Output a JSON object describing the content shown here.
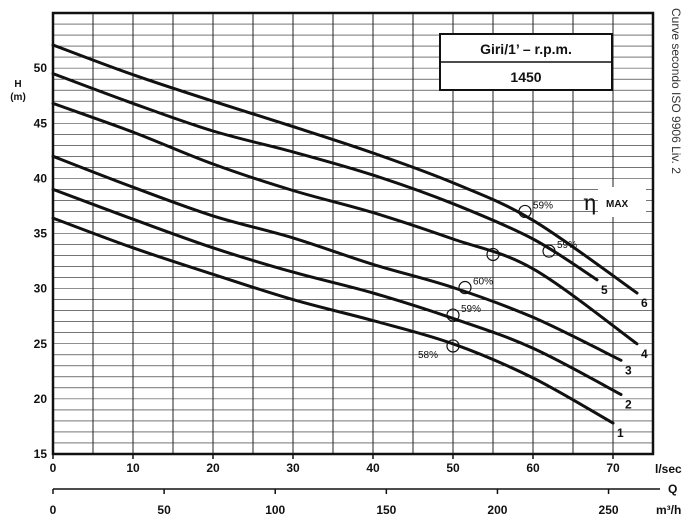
{
  "chart_data": {
    "type": "line",
    "title_box": {
      "line1": "Giri/1’ – r.p.m.",
      "line2": "1450"
    },
    "yaxis": {
      "label_letter": "H",
      "label_unit": "(m)",
      "ylim": [
        15,
        55
      ],
      "ticks": [
        15,
        20,
        25,
        30,
        35,
        40,
        45,
        50
      ]
    },
    "xaxis_primary": {
      "unit": "l/sec",
      "xlim": [
        0,
        75
      ],
      "ticks": [
        0,
        10,
        20,
        30,
        40,
        50,
        60,
        70
      ]
    },
    "xaxis_secondary": {
      "unit": "m³/h",
      "ticks": [
        0,
        50,
        100,
        150,
        200,
        250
      ]
    },
    "q_label": "Q",
    "grid": true,
    "side_text": "Curve secondo ISO 9906 Liv. 2",
    "eta_label": {
      "symbol": "η",
      "text": "MAX"
    },
    "series": [
      {
        "name": "1",
        "x": [
          0,
          10,
          20,
          30,
          40,
          50,
          60,
          70
        ],
        "y": [
          36.4,
          33.7,
          31.3,
          29.0,
          27.1,
          25.0,
          21.9,
          17.8
        ]
      },
      {
        "name": "2",
        "x": [
          0,
          10,
          20,
          30,
          40,
          50,
          60,
          71
        ],
        "y": [
          39.0,
          36.3,
          33.7,
          31.5,
          29.6,
          27.3,
          24.6,
          20.4
        ]
      },
      {
        "name": "3",
        "x": [
          0,
          10,
          20,
          30,
          40,
          50,
          60,
          71
        ],
        "y": [
          42.0,
          39.2,
          36.6,
          34.6,
          32.2,
          30.1,
          27.4,
          23.5
        ]
      },
      {
        "name": "4",
        "x": [
          0,
          10,
          20,
          30,
          40,
          50,
          60,
          73
        ],
        "y": [
          46.8,
          44.2,
          41.3,
          38.9,
          36.9,
          34.5,
          31.8,
          25.0
        ]
      },
      {
        "name": "5",
        "x": [
          0,
          10,
          20,
          30,
          40,
          50,
          60,
          68
        ],
        "y": [
          49.5,
          46.8,
          44.3,
          42.4,
          40.3,
          37.7,
          34.5,
          30.8
        ]
      },
      {
        "name": "6",
        "x": [
          0,
          10,
          20,
          30,
          40,
          50,
          60,
          73
        ],
        "y": [
          52.1,
          49.4,
          47.0,
          44.7,
          42.3,
          39.6,
          36.2,
          29.6
        ]
      }
    ],
    "efficiency_points": [
      {
        "x": 50.0,
        "y": 24.8,
        "label": "58%"
      },
      {
        "x": 50.0,
        "y": 27.6,
        "label": "59%"
      },
      {
        "x": 51.5,
        "y": 30.1,
        "label": "60%"
      },
      {
        "x": 55.0,
        "y": 33.1,
        "label": ""
      },
      {
        "x": 59.0,
        "y": 37.0,
        "label": "59%"
      },
      {
        "x": 62.0,
        "y": 33.4,
        "label": "59%"
      }
    ]
  }
}
